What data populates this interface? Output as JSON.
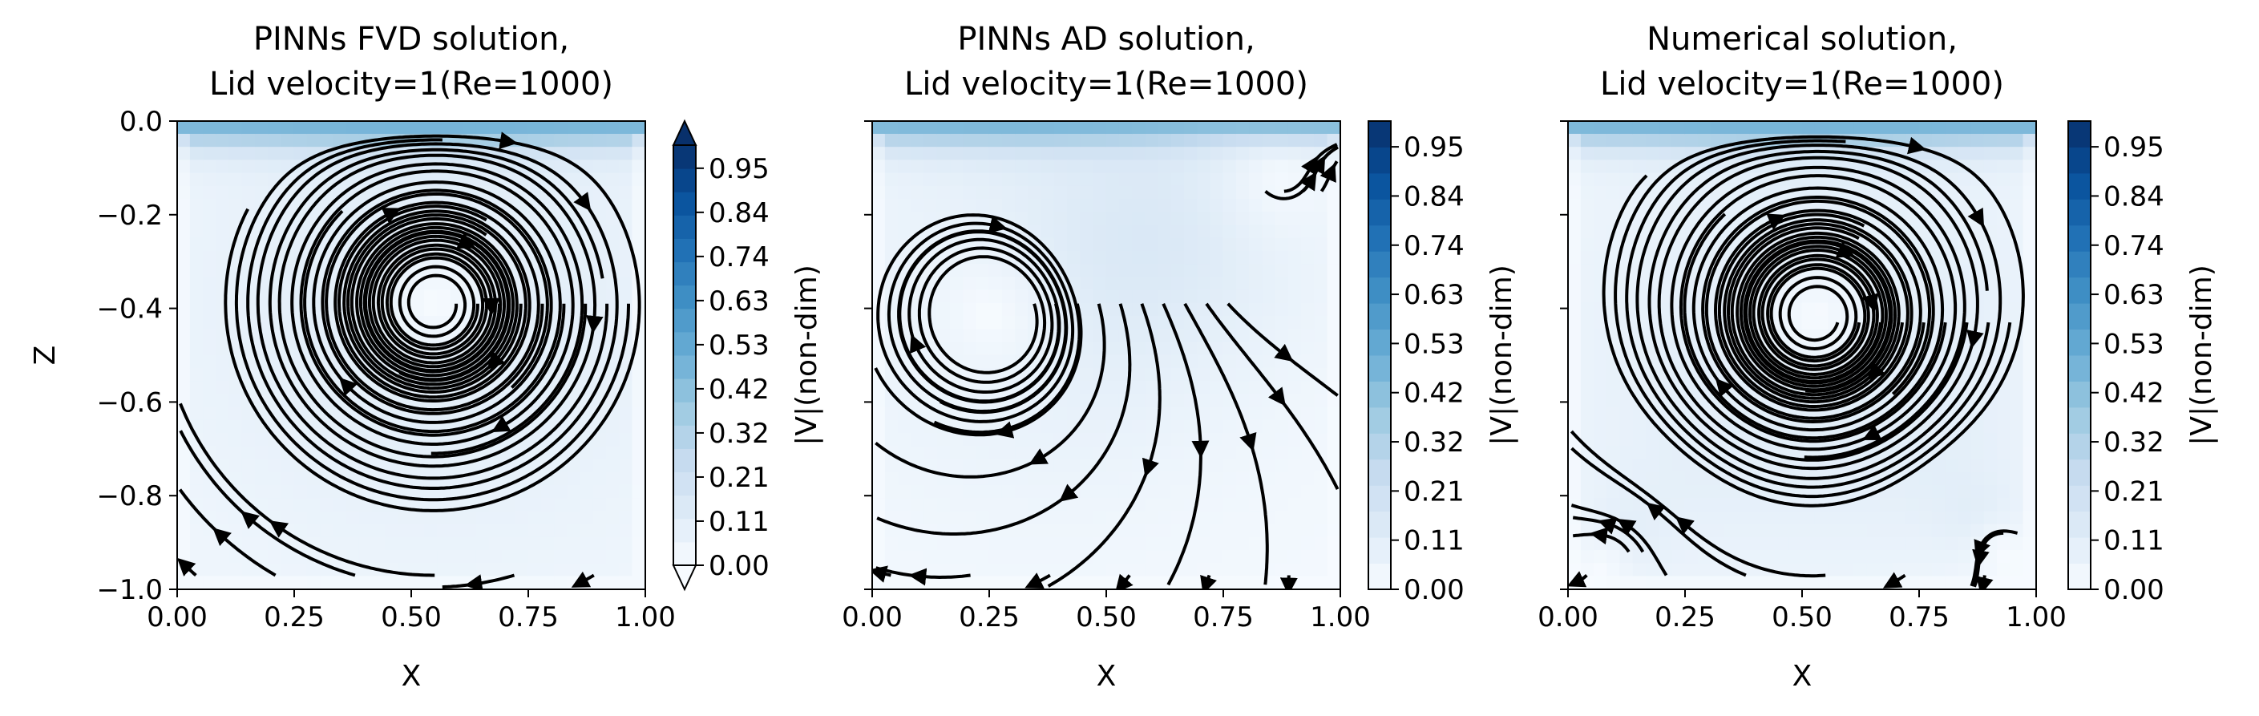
{
  "figure": {
    "colorbar_label": "|V|(non-dim)",
    "colorbar_ticks": [
      "0.00",
      "0.11",
      "0.21",
      "0.32",
      "0.42",
      "0.53",
      "0.63",
      "0.74",
      "0.84",
      "0.95"
    ],
    "colormap": [
      "#f7fbff",
      "#deebf7",
      "#c6dbef",
      "#9ecae1",
      "#6baed6",
      "#4292c6",
      "#2171b5",
      "#08519c",
      "#08306b"
    ]
  },
  "chart_data": [
    {
      "type": "heatmap",
      "subtype": "streamplot",
      "title_line1": "PINNs FVD solution,",
      "title_line2": "Lid velocity=1(Re=1000)",
      "xlabel": "X",
      "ylabel": "Z",
      "xlim": [
        0.0,
        1.0
      ],
      "ylim": [
        -1.0,
        0.0
      ],
      "x_ticks": [
        "0.00",
        "0.25",
        "0.50",
        "0.75",
        "1.00"
      ],
      "y_ticks": [
        "0.0",
        "−0.2",
        "−0.4",
        "−0.6",
        "−0.8",
        "−1.0"
      ],
      "colorbar_range": [
        0.0,
        1.0
      ],
      "colorbar_extend": "both",
      "vortices": [
        {
          "kind": "primary",
          "x": 0.55,
          "z": -0.39,
          "rotation": "clockwise"
        }
      ]
    },
    {
      "type": "heatmap",
      "subtype": "streamplot",
      "title_line1": "PINNs AD solution,",
      "title_line2": "Lid velocity=1(Re=1000)",
      "xlabel": "X",
      "ylabel": "",
      "xlim": [
        0.0,
        1.0
      ],
      "ylim": [
        -1.0,
        0.0
      ],
      "x_ticks": [
        "0.00",
        "0.25",
        "0.50",
        "0.75",
        "1.00"
      ],
      "colorbar_range": [
        0.0,
        1.0
      ],
      "colorbar_extend": "neither",
      "vortices": [
        {
          "kind": "primary",
          "x": 0.3,
          "z": -0.39,
          "rotation": "clockwise"
        },
        {
          "kind": "secondary",
          "x": 0.8,
          "z": -0.15,
          "rotation": "counterclockwise"
        }
      ]
    },
    {
      "type": "heatmap",
      "subtype": "streamplot",
      "title_line1": "Numerical solution,",
      "title_line2": "Lid velocity=1(Re=1000)",
      "xlabel": "X",
      "ylabel": "",
      "xlim": [
        0.0,
        1.0
      ],
      "ylim": [
        -1.0,
        0.0
      ],
      "x_ticks": [
        "0.00",
        "0.25",
        "0.50",
        "0.75",
        "1.00"
      ],
      "colorbar_range": [
        0.0,
        1.0
      ],
      "colorbar_extend": "neither",
      "vortices": [
        {
          "kind": "primary",
          "x": 0.53,
          "z": -0.43,
          "rotation": "clockwise"
        },
        {
          "kind": "corner-left",
          "x": 0.1,
          "z": -0.92,
          "rotation": "counterclockwise"
        },
        {
          "kind": "corner-right",
          "x": 0.9,
          "z": -0.88,
          "rotation": "counterclockwise"
        }
      ]
    }
  ]
}
